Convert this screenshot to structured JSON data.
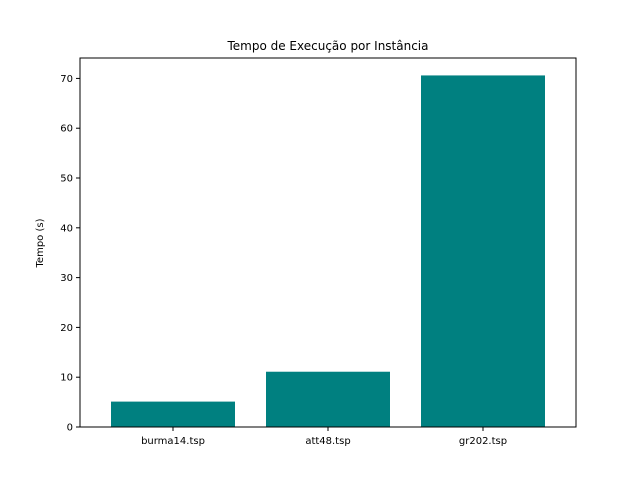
{
  "chart_data": {
    "type": "bar",
    "title": "Tempo de Execução por Instância",
    "xlabel": "",
    "ylabel": "Tempo (s)",
    "categories": [
      "burma14.tsp",
      "att48.tsp",
      "gr202.tsp"
    ],
    "values": [
      5.1,
      11.1,
      70.6
    ],
    "ylim": [
      0,
      74.1
    ],
    "yticks": [
      0,
      10,
      20,
      30,
      40,
      50,
      60,
      70
    ],
    "bar_color": "#008080",
    "grid": false
  }
}
